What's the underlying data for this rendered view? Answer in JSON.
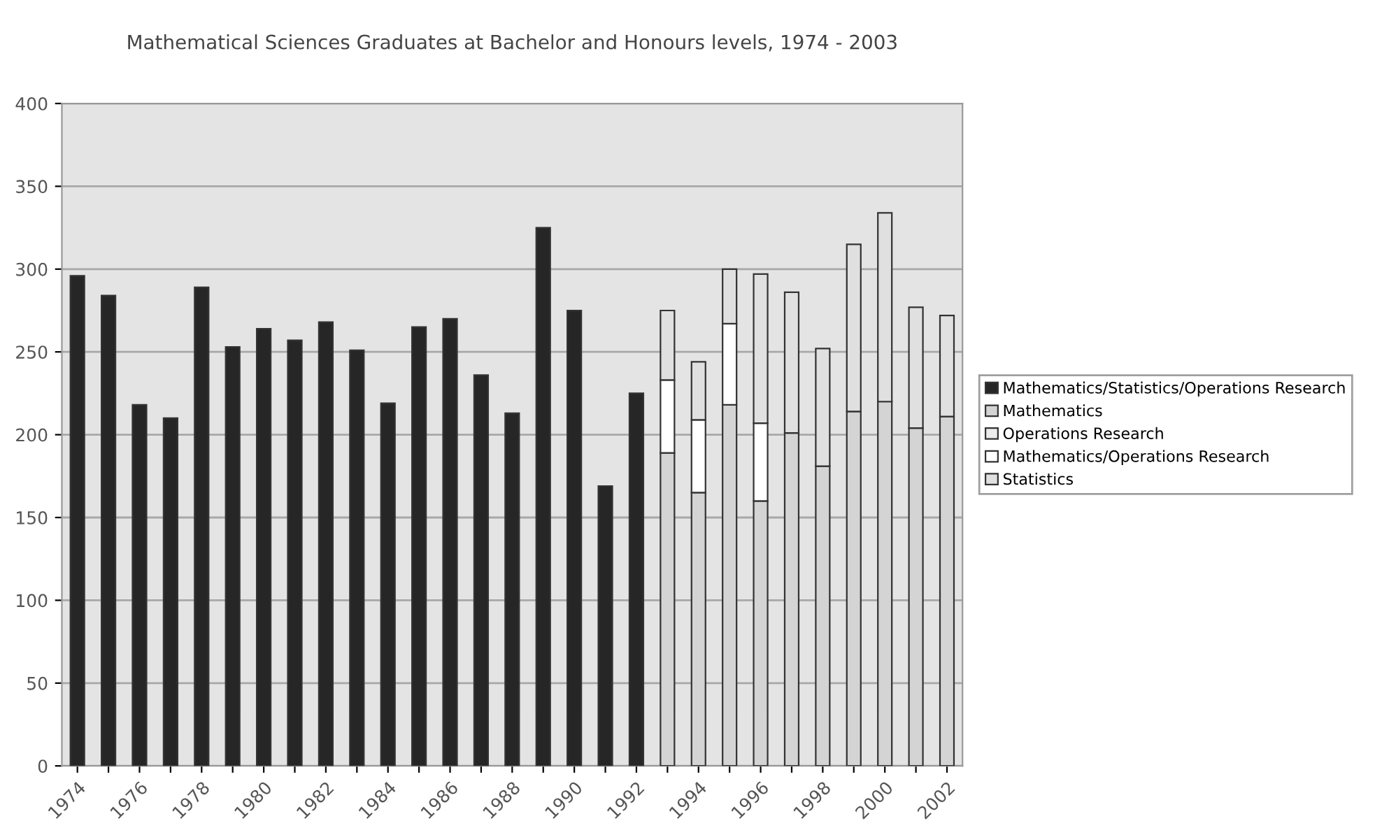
{
  "chart_data": {
    "type": "bar",
    "title": "Mathematical Sciences Graduates at Bachelor and Honours levels, 1974 - 2003",
    "categories": [
      "1974",
      null,
      "1976",
      null,
      "1978",
      null,
      "1980",
      null,
      "1982",
      null,
      "1984",
      null,
      "1986",
      null,
      "1988",
      null,
      "1990",
      null,
      "1992",
      null,
      "1994",
      null,
      "1996",
      null,
      "1998",
      null,
      "2000",
      null,
      "2002"
    ],
    "stacked": true,
    "series": [
      {
        "name": "Mathematics/Statistics/Operations Research",
        "color": "#262626",
        "values": [
          296,
          284,
          218,
          210,
          289,
          253,
          264,
          257,
          268,
          251,
          219,
          265,
          270,
          236,
          213,
          325,
          275,
          169,
          225,
          null,
          null,
          null,
          null,
          null,
          null,
          null,
          null,
          null,
          null
        ]
      },
      {
        "name": "Mathematics",
        "color": "#d4d4d4",
        "values": [
          null,
          null,
          null,
          null,
          null,
          null,
          null,
          null,
          null,
          null,
          null,
          null,
          null,
          null,
          null,
          null,
          null,
          null,
          null,
          189,
          165,
          218,
          160,
          201,
          181,
          214,
          220,
          204,
          211
        ]
      },
      {
        "name": "Operations Research",
        "color": "#ececec",
        "values": [
          null,
          null,
          null,
          null,
          null,
          null,
          null,
          null,
          null,
          null,
          null,
          null,
          null,
          null,
          null,
          null,
          null,
          null,
          null,
          null,
          null,
          null,
          null,
          null,
          null,
          null,
          null,
          null,
          null
        ]
      },
      {
        "name": "Mathematics/Operations Research",
        "color": "#ffffff",
        "values": [
          null,
          null,
          null,
          null,
          null,
          null,
          null,
          null,
          null,
          null,
          null,
          null,
          null,
          null,
          null,
          null,
          null,
          null,
          null,
          44,
          44,
          49,
          47,
          null,
          null,
          null,
          null,
          null,
          null
        ]
      },
      {
        "name": "Statistics",
        "color": "#e0e0e0",
        "values": [
          null,
          null,
          null,
          null,
          null,
          null,
          null,
          null,
          null,
          null,
          null,
          null,
          null,
          null,
          null,
          null,
          null,
          null,
          null,
          42,
          35,
          33,
          90,
          85,
          71,
          101,
          114,
          73,
          61
        ]
      }
    ],
    "ylim": [
      0,
      400
    ],
    "yticks": [
      0,
      50,
      100,
      150,
      200,
      250,
      300,
      350,
      400
    ],
    "grid": "y",
    "legend": "right"
  }
}
